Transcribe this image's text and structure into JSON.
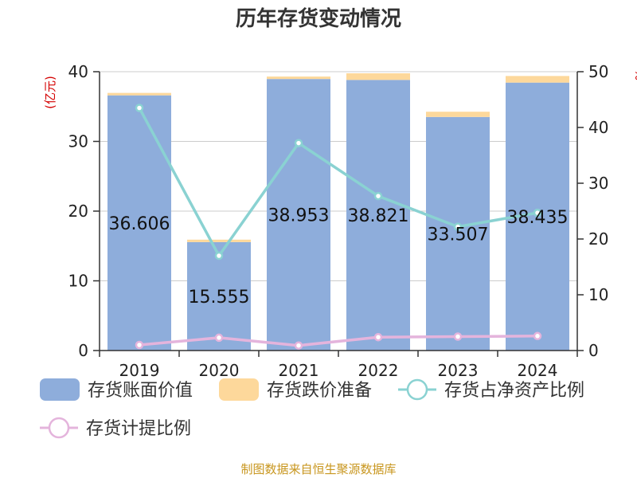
{
  "title": "历年存货变动情况",
  "left_axis_unit": "(亿元)",
  "right_axis_unit": "%",
  "source": "制图数据来自恒生聚源数据库",
  "colors": {
    "book_value": "#8eaddb",
    "impairment": "#fdd89b",
    "ratio_net_assets": "#8ad2d2",
    "provision_ratio": "#e4b4dc",
    "unit_red": "#d40000",
    "source_gold": "#c8961e"
  },
  "chart_data": {
    "type": "bar",
    "categories": [
      "2019",
      "2020",
      "2021",
      "2022",
      "2023",
      "2024"
    ],
    "left_axis": {
      "ylim": [
        0,
        40
      ],
      "ticks": [
        0,
        10,
        20,
        30,
        40
      ]
    },
    "right_axis": {
      "ylim": [
        0,
        50
      ],
      "ticks": [
        0,
        10,
        20,
        30,
        40,
        50
      ]
    },
    "series": [
      {
        "name": "存货账面价值",
        "type": "bar",
        "stack": "total",
        "axis": "left",
        "values": [
          36.606,
          15.555,
          38.953,
          38.821,
          33.507,
          38.435
        ],
        "labels": [
          "36.606",
          "15.555",
          "38.953",
          "38.821",
          "33.507",
          "38.435"
        ]
      },
      {
        "name": "存货跌价准备",
        "type": "bar",
        "stack": "total",
        "axis": "left",
        "values": [
          0.35,
          0.35,
          0.35,
          0.95,
          0.75,
          0.95
        ]
      },
      {
        "name": "存货占净资产比例",
        "type": "line",
        "axis": "right",
        "values": [
          43.5,
          17.0,
          37.2,
          27.7,
          22.2,
          24.7
        ]
      },
      {
        "name": "存货计提比例",
        "type": "line",
        "axis": "right",
        "values": [
          1.0,
          2.3,
          0.9,
          2.4,
          2.5,
          2.6
        ]
      }
    ],
    "grid": true,
    "legend_position": "bottom"
  }
}
